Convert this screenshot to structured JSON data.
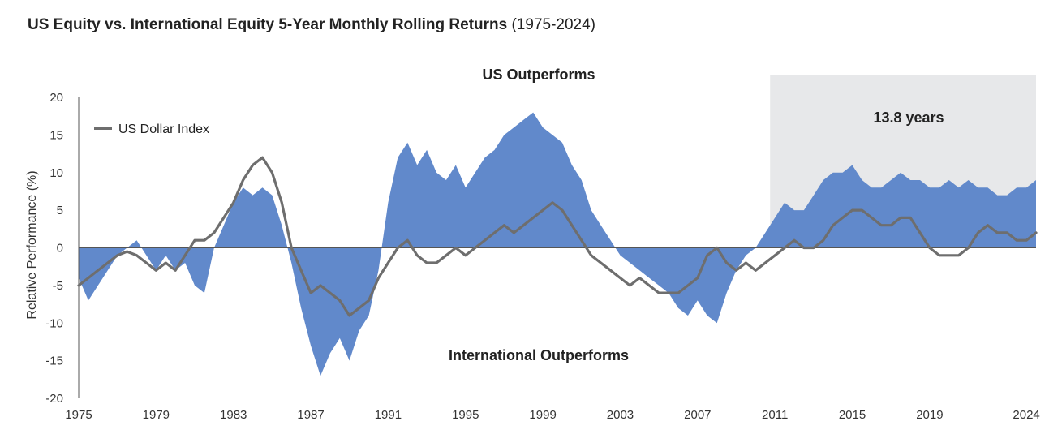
{
  "chart_data": {
    "type": "area",
    "title": "US Equity vs. International Equity 5-Year Monthly Rolling Returns",
    "subtitle": "(1975-2024)",
    "ylabel": "Relative Performance (%)",
    "xlabel": "",
    "xlim": [
      1975,
      2024
    ],
    "ylim": [
      -20,
      20
    ],
    "x_ticks": [
      "1975",
      "1979",
      "1983",
      "1987",
      "1991",
      "1995",
      "1999",
      "2003",
      "2007",
      "2011",
      "2015",
      "2019",
      "2024"
    ],
    "y_ticks": [
      20,
      15,
      10,
      5,
      0,
      -5,
      -10,
      -15,
      -20
    ],
    "grid": false,
    "legend_position": "top-left",
    "annotations": {
      "top": "US Outperforms",
      "bottom": "International Outperforms",
      "shaded_label": "13.8 years"
    },
    "shaded_region": {
      "x_start": 2010.75,
      "x_end": 2024.5
    },
    "colors": {
      "area": "#6189cb",
      "line": "#6e6e6e",
      "shade": "#e7e8ea",
      "axis": "#555555"
    },
    "series": [
      {
        "type": "area",
        "x": [
          1975.0,
          1975.5,
          1976.0,
          1976.5,
          1977.0,
          1977.5,
          1978.0,
          1978.5,
          1979.0,
          1979.5,
          1980.0,
          1980.5,
          1981.0,
          1981.5,
          1982.0,
          1982.5,
          1983.0,
          1983.5,
          1984.0,
          1984.5,
          1985.0,
          1985.5,
          1986.0,
          1986.5,
          1987.0,
          1987.5,
          1988.0,
          1988.5,
          1989.0,
          1989.5,
          1990.0,
          1990.5,
          1991.0,
          1991.5,
          1992.0,
          1992.5,
          1993.0,
          1993.5,
          1994.0,
          1994.5,
          1995.0,
          1995.5,
          1996.0,
          1996.5,
          1997.0,
          1997.5,
          1998.0,
          1998.5,
          1999.0,
          1999.5,
          2000.0,
          2000.5,
          2001.0,
          2001.5,
          2002.0,
          2002.5,
          2003.0,
          2003.5,
          2004.0,
          2004.5,
          2005.0,
          2005.5,
          2006.0,
          2006.5,
          2007.0,
          2007.5,
          2008.0,
          2008.5,
          2009.0,
          2009.5,
          2010.0,
          2010.5,
          2011.0,
          2011.5,
          2012.0,
          2012.5,
          2013.0,
          2013.5,
          2014.0,
          2014.5,
          2015.0,
          2015.5,
          2016.0,
          2016.5,
          2017.0,
          2017.5,
          2018.0,
          2018.5,
          2019.0,
          2019.5,
          2020.0,
          2020.5,
          2021.0,
          2021.5,
          2022.0,
          2022.5,
          2023.0,
          2023.5,
          2024.0,
          2024.5
        ],
        "values": [
          -4,
          -7,
          -5,
          -3,
          -1,
          0,
          1,
          -1,
          -3,
          -1,
          -3,
          -2,
          -5,
          -6,
          0,
          3,
          6,
          8,
          7,
          8,
          7,
          3,
          -2,
          -8,
          -13,
          -17,
          -14,
          -12,
          -15,
          -11,
          -9,
          -3,
          6,
          12,
          14,
          11,
          13,
          10,
          9,
          11,
          8,
          10,
          12,
          13,
          15,
          16,
          17,
          18,
          16,
          15,
          14,
          11,
          9,
          5,
          3,
          1,
          -1,
          -2,
          -3,
          -4,
          -5,
          -6,
          -8,
          -9,
          -7,
          -9,
          -10,
          -6,
          -3,
          -1,
          0,
          2,
          4,
          6,
          5,
          5,
          7,
          9,
          10,
          10,
          11,
          9,
          8,
          8,
          9,
          10,
          9,
          9,
          8,
          8,
          9,
          8,
          9,
          8,
          8,
          7,
          7,
          8,
          8,
          9
        ]
      },
      {
        "name": "US Dollar Index",
        "type": "line",
        "x": [
          1975.0,
          1975.5,
          1976.0,
          1976.5,
          1977.0,
          1977.5,
          1978.0,
          1978.5,
          1979.0,
          1979.5,
          1980.0,
          1980.5,
          1981.0,
          1981.5,
          1982.0,
          1982.5,
          1983.0,
          1983.5,
          1984.0,
          1984.5,
          1985.0,
          1985.5,
          1986.0,
          1986.5,
          1987.0,
          1987.5,
          1988.0,
          1988.5,
          1989.0,
          1989.5,
          1990.0,
          1990.5,
          1991.0,
          1991.5,
          1992.0,
          1992.5,
          1993.0,
          1993.5,
          1994.0,
          1994.5,
          1995.0,
          1995.5,
          1996.0,
          1996.5,
          1997.0,
          1997.5,
          1998.0,
          1998.5,
          1999.0,
          1999.5,
          2000.0,
          2000.5,
          2001.0,
          2001.5,
          2002.0,
          2002.5,
          2003.0,
          2003.5,
          2004.0,
          2004.5,
          2005.0,
          2005.5,
          2006.0,
          2006.5,
          2007.0,
          2007.5,
          2008.0,
          2008.5,
          2009.0,
          2009.5,
          2010.0,
          2010.5,
          2011.0,
          2011.5,
          2012.0,
          2012.5,
          2013.0,
          2013.5,
          2014.0,
          2014.5,
          2015.0,
          2015.5,
          2016.0,
          2016.5,
          2017.0,
          2017.5,
          2018.0,
          2018.5,
          2019.0,
          2019.5,
          2020.0,
          2020.5,
          2021.0,
          2021.5,
          2022.0,
          2022.5,
          2023.0,
          2023.5,
          2024.0,
          2024.5
        ],
        "values": [
          -5,
          -4,
          -3,
          -2,
          -1,
          -0.5,
          -1,
          -2,
          -3,
          -2,
          -3,
          -1,
          1,
          1,
          2,
          4,
          6,
          9,
          11,
          12,
          10,
          6,
          0,
          -3,
          -6,
          -5,
          -6,
          -7,
          -9,
          -8,
          -7,
          -4,
          -2,
          0,
          1,
          -1,
          -2,
          -2,
          -1,
          0,
          -1,
          0,
          1,
          2,
          3,
          2,
          3,
          4,
          5,
          6,
          5,
          3,
          1,
          -1,
          -2,
          -3,
          -4,
          -5,
          -4,
          -5,
          -6,
          -6,
          -6,
          -5,
          -4,
          -1,
          0,
          -2,
          -3,
          -2,
          -3,
          -2,
          -1,
          0,
          1,
          0,
          0,
          1,
          3,
          4,
          5,
          5,
          4,
          3,
          3,
          4,
          4,
          2,
          0,
          -1,
          -1,
          -1,
          0,
          2,
          3,
          2,
          2,
          1,
          1,
          2
        ]
      }
    ]
  }
}
